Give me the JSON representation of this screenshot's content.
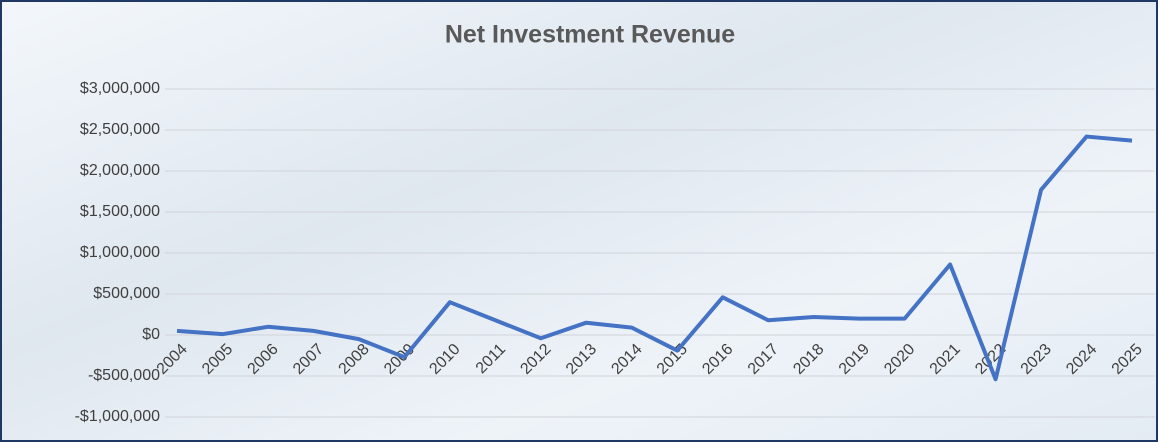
{
  "chart_data": {
    "type": "line",
    "title": "Net Investment Revenue",
    "categories": [
      "2004",
      "2005",
      "2006",
      "2007",
      "2008",
      "2009",
      "2010",
      "2011",
      "2012",
      "2013",
      "2014",
      "2015",
      "2016",
      "2017",
      "2018",
      "2019",
      "2020",
      "2021",
      "2022",
      "2023",
      "2024",
      "2025"
    ],
    "series": [
      {
        "name": "Net Investment Revenue",
        "color": "#4472c4",
        "values": [
          50000,
          10000,
          100000,
          50000,
          -50000,
          -270000,
          400000,
          180000,
          -40000,
          150000,
          90000,
          -190000,
          460000,
          180000,
          220000,
          200000,
          200000,
          860000,
          -540000,
          1770000,
          2420000,
          2370000
        ]
      }
    ],
    "ylim": [
      -1000000,
      3000000
    ],
    "yticks": [
      {
        "value": -1000000,
        "label": "-$1,000,000"
      },
      {
        "value": -500000,
        "label": "-$500,000"
      },
      {
        "value": 0,
        "label": "$0"
      },
      {
        "value": 500000,
        "label": "$500,000"
      },
      {
        "value": 1000000,
        "label": "$1,000,000"
      },
      {
        "value": 1500000,
        "label": "$1,500,000"
      },
      {
        "value": 2000000,
        "label": "$2,000,000"
      },
      {
        "value": 2500000,
        "label": "$2,500,000"
      },
      {
        "value": 3000000,
        "label": "$3,000,000"
      }
    ],
    "grid": true
  }
}
